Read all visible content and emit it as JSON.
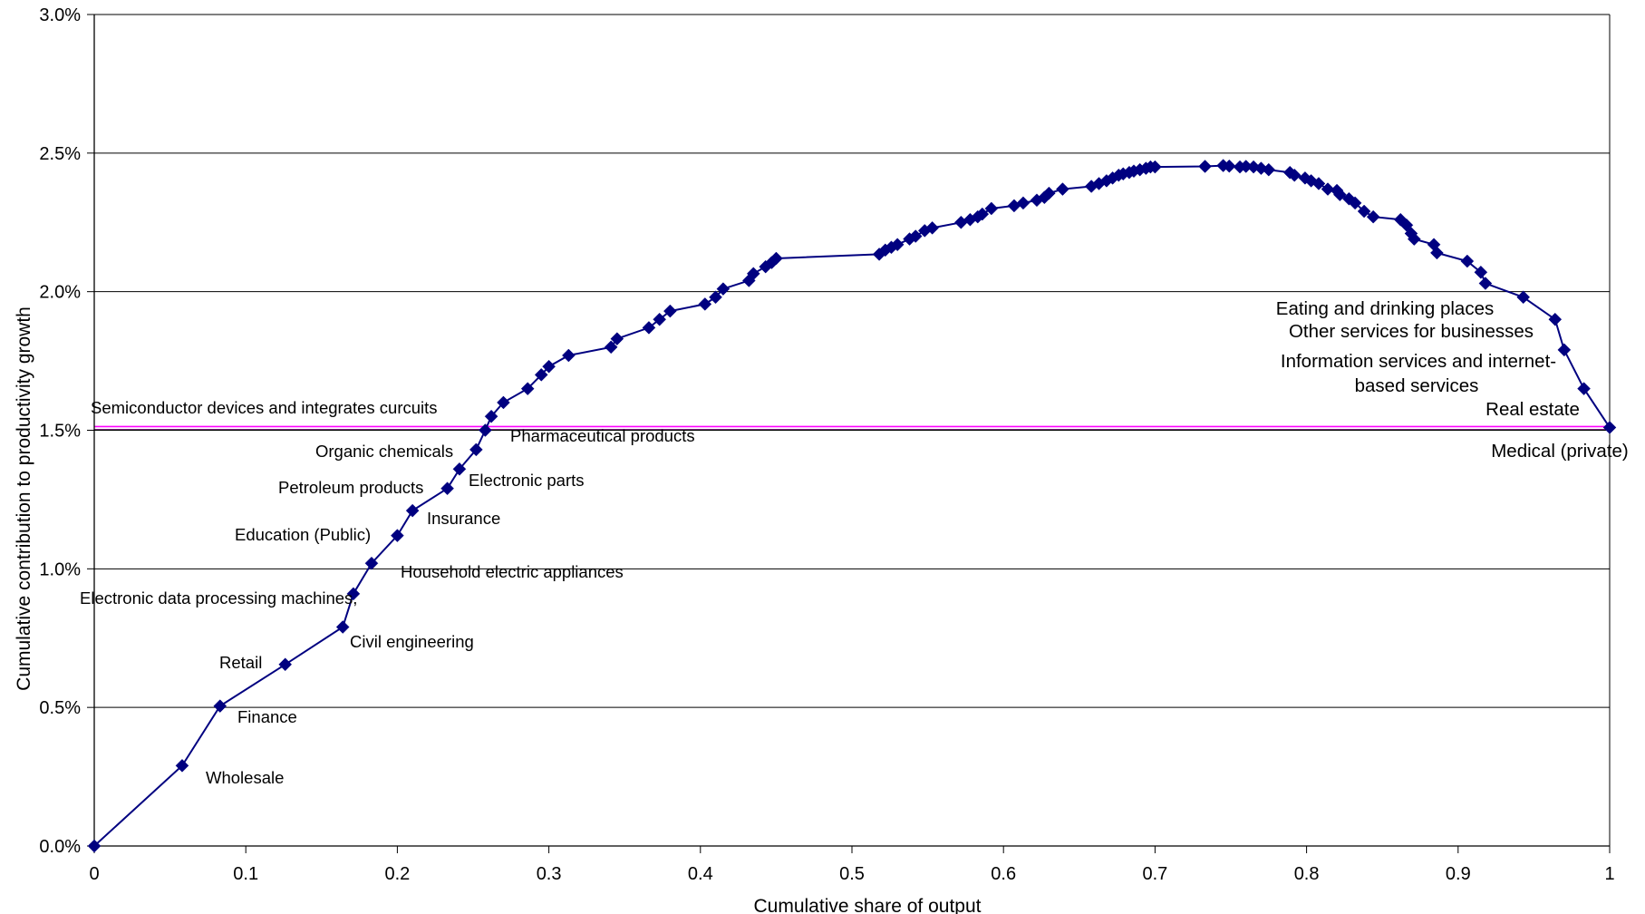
{
  "chart_data": {
    "type": "line",
    "xlabel": "Cumulative share of output",
    "ylabel": "Cumulative contribution to productivity growth",
    "xlim": [
      0,
      1
    ],
    "ylim": [
      0,
      0.03
    ],
    "x_ticks": [
      "0",
      "0.1",
      "0.2",
      "0.3",
      "0.4",
      "0.5",
      "0.6",
      "0.7",
      "0.8",
      "0.9",
      "1"
    ],
    "y_ticks": [
      "0.0%",
      "0.5%",
      "1.0%",
      "1.5%",
      "2.0%",
      "2.5%",
      "3.0%"
    ],
    "grid": "horizontal",
    "colors": {
      "series": "#000080",
      "reference_line": "#ff00ff",
      "grid": "#000000"
    },
    "reference_line": {
      "y": 0.0151
    },
    "series": [
      {
        "x": [
          0,
          0.058,
          0.083,
          0.126,
          0.164,
          0.171,
          0.183,
          0.2,
          0.21,
          0.233,
          0.241,
          0.252,
          0.258,
          0.262,
          0.27,
          0.286,
          0.295,
          0.3,
          0.313,
          0.341,
          0.345,
          0.366,
          0.373,
          0.38,
          0.403,
          0.41,
          0.415,
          0.432,
          0.435,
          0.443,
          0.447,
          0.45,
          0.518,
          0.522,
          0.526,
          0.53,
          0.538,
          0.542,
          0.548,
          0.553,
          0.572,
          0.578,
          0.583,
          0.586,
          0.592,
          0.607,
          0.613,
          0.622,
          0.627,
          0.63,
          0.639,
          0.658,
          0.663,
          0.668,
          0.672,
          0.676,
          0.679,
          0.683,
          0.686,
          0.69,
          0.694,
          0.697,
          0.7,
          0.733,
          0.745,
          0.749,
          0.756,
          0.76,
          0.765,
          0.77,
          0.775,
          0.789,
          0.792,
          0.799,
          0.803,
          0.808,
          0.814,
          0.82,
          0.822,
          0.828,
          0.832,
          0.838,
          0.844,
          0.862,
          0.866,
          0.869,
          0.871,
          0.884,
          0.886,
          0.906,
          0.915,
          0.918,
          0.943,
          0.964,
          0.97,
          0.983,
          1.0
        ],
        "y": [
          0,
          0.0029,
          0.00505,
          0.00655,
          0.0079,
          0.0091,
          0.0102,
          0.0112,
          0.0121,
          0.0129,
          0.0136,
          0.0143,
          0.015,
          0.0155,
          0.016,
          0.0165,
          0.017,
          0.0173,
          0.0177,
          0.018,
          0.0183,
          0.0187,
          0.019,
          0.0193,
          0.01955,
          0.0198,
          0.0201,
          0.0204,
          0.02065,
          0.0209,
          0.02105,
          0.0212,
          0.02135,
          0.0215,
          0.0216,
          0.0217,
          0.0219,
          0.022,
          0.0222,
          0.0223,
          0.0225,
          0.0226,
          0.0227,
          0.0228,
          0.023,
          0.0231,
          0.0232,
          0.0233,
          0.0234,
          0.02355,
          0.0237,
          0.0238,
          0.0239,
          0.024,
          0.0241,
          0.0242,
          0.02425,
          0.0243,
          0.02435,
          0.0244,
          0.02445,
          0.0245,
          0.0245,
          0.02452,
          0.02455,
          0.02453,
          0.0245,
          0.02452,
          0.0245,
          0.02445,
          0.0244,
          0.0243,
          0.0242,
          0.0241,
          0.024,
          0.0239,
          0.0237,
          0.02365,
          0.0235,
          0.02335,
          0.0232,
          0.0229,
          0.0227,
          0.0226,
          0.0224,
          0.0221,
          0.0219,
          0.0217,
          0.0214,
          0.0211,
          0.0207,
          0.0203,
          0.0198,
          0.019,
          0.0179,
          0.0165,
          0.0151
        ]
      }
    ],
    "annotations": [
      {
        "text": "Wholesale",
        "x": 0.058,
        "y": 0.0029
      },
      {
        "text": "Finance",
        "x": 0.083,
        "y": 0.00505
      },
      {
        "text": "Retail",
        "x": 0.126,
        "y": 0.00655
      },
      {
        "text": "Civil engineering",
        "x": 0.164,
        "y": 0.0079
      },
      {
        "text": "Electronic data processing machines,",
        "x": 0.171,
        "y": 0.0091
      },
      {
        "text": "Household electric appliances",
        "x": 0.183,
        "y": 0.0102
      },
      {
        "text": "Education (Public)",
        "x": 0.2,
        "y": 0.0112
      },
      {
        "text": "Insurance",
        "x": 0.21,
        "y": 0.0121
      },
      {
        "text": "Petroleum products",
        "x": 0.233,
        "y": 0.0129
      },
      {
        "text": "Electronic parts",
        "x": 0.241,
        "y": 0.0136
      },
      {
        "text": "Organic chemicals",
        "x": 0.252,
        "y": 0.0143
      },
      {
        "text": "Pharmaceutical products",
        "x": 0.258,
        "y": 0.015
      },
      {
        "text": "Semiconductor devices and integrates curcuits",
        "x": 0.262,
        "y": 0.0155
      },
      {
        "text": "Eating and drinking places",
        "x": 0.964,
        "y": 0.019
      },
      {
        "text": "Other services for businesses",
        "x": 0.964,
        "y": 0.019
      },
      {
        "text": "Information services and internet-",
        "x": 0.97,
        "y": 0.0179
      },
      {
        "text": "based services",
        "x": 0.97,
        "y": 0.0179
      },
      {
        "text": "Real estate",
        "x": 0.983,
        "y": 0.0165
      },
      {
        "text": "Medical (private)",
        "x": 1.0,
        "y": 0.0151
      }
    ]
  }
}
